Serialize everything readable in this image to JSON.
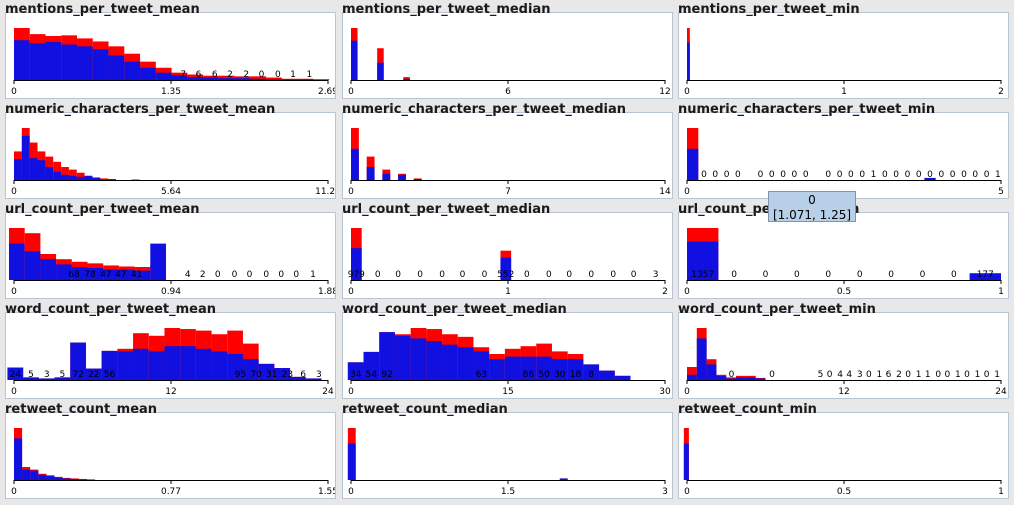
{
  "chart_data": [
    {
      "type": "bar",
      "title": "mentions_per_tweet_mean",
      "ticks": [
        "0",
        "1.35",
        "2.69"
      ],
      "xlim": [
        0,
        2.69
      ],
      "x_start": 0,
      "bin_width": 0.135,
      "red": [
        85,
        75,
        72,
        73,
        68,
        63,
        55,
        43,
        30,
        20,
        12,
        9,
        7,
        7,
        6,
        6,
        4,
        2,
        2,
        1
      ],
      "blue": [
        65,
        60,
        62,
        58,
        55,
        50,
        40,
        30,
        20,
        12,
        8,
        5,
        4,
        3,
        3,
        2,
        1,
        1,
        1,
        1
      ],
      "labels": [
        {
          "x": 1.45,
          "text": "7"
        },
        {
          "x": 1.58,
          "text": "6"
        },
        {
          "x": 1.72,
          "text": "6"
        },
        {
          "x": 1.85,
          "text": "2"
        },
        {
          "x": 1.99,
          "text": "2"
        },
        {
          "x": 2.12,
          "text": "0"
        },
        {
          "x": 2.26,
          "text": "0"
        },
        {
          "x": 2.39,
          "text": "1"
        },
        {
          "x": 2.53,
          "text": "1"
        }
      ]
    },
    {
      "type": "bar",
      "title": "mentions_per_tweet_median",
      "ticks": [
        "0",
        "6",
        "12"
      ],
      "xlim": [
        0,
        12
      ],
      "x_start": 0,
      "bin_width": 0.25,
      "red": [
        90,
        0,
        0,
        0,
        55,
        0,
        0,
        0,
        5
      ],
      "blue": [
        68,
        0,
        0,
        0,
        30,
        0,
        0,
        0,
        2
      ],
      "labels": []
    },
    {
      "type": "bar",
      "title": "mentions_per_tweet_min",
      "ticks": [
        "0",
        "1",
        "2"
      ],
      "xlim": [
        0,
        2
      ],
      "x_start": 0,
      "bin_width": 0.018,
      "red": [
        90
      ],
      "blue": [
        65
      ],
      "labels": []
    },
    {
      "type": "bar",
      "title": "numeric_characters_per_tweet_mean",
      "ticks": [
        "0",
        "5.64",
        "11.29"
      ],
      "xlim": [
        0,
        11.29
      ],
      "x_start": 0,
      "bin_width": 0.282,
      "red": [
        55,
        100,
        72,
        55,
        45,
        35,
        25,
        20,
        14,
        8,
        5,
        3,
        2,
        0,
        0,
        1
      ],
      "blue": [
        40,
        85,
        42,
        38,
        25,
        16,
        10,
        8,
        6,
        8,
        4,
        1,
        1,
        0,
        0,
        0
      ],
      "labels": []
    },
    {
      "type": "bar",
      "title": "numeric_characters_per_tweet_median",
      "ticks": [
        "0",
        "7",
        "14"
      ],
      "xlim": [
        0,
        14
      ],
      "x_start": 0,
      "bin_width": 0.35,
      "red": [
        100,
        0,
        45,
        0,
        20,
        0,
        12,
        0,
        3
      ],
      "blue": [
        60,
        0,
        25,
        0,
        12,
        0,
        10,
        0,
        2
      ],
      "labels": []
    },
    {
      "type": "bar",
      "title": "numeric_characters_per_tweet_min",
      "ticks": [
        "0",
        "5"
      ],
      "xlim": [
        0,
        5
      ],
      "x_start": 0,
      "bin_width": 0.18,
      "red": [
        100,
        0,
        0,
        0,
        0,
        0,
        0,
        0,
        0,
        0,
        0,
        0,
        0,
        0,
        0,
        0,
        0,
        0,
        0,
        0,
        0,
        0,
        0,
        0,
        0,
        0,
        0,
        0
      ],
      "blue": [
        60,
        0,
        0,
        0,
        0,
        0,
        0,
        0,
        0,
        0,
        0,
        0,
        0,
        0,
        0,
        0,
        0,
        0,
        0,
        0,
        0,
        4,
        0,
        0,
        0,
        0,
        0,
        0
      ],
      "labels": [
        {
          "x": 0.27,
          "text": "0"
        },
        {
          "x": 0.45,
          "text": "0"
        },
        {
          "x": 0.63,
          "text": "0"
        },
        {
          "x": 0.81,
          "text": "0"
        },
        {
          "x": 1.17,
          "text": "0"
        },
        {
          "x": 1.35,
          "text": "0"
        },
        {
          "x": 1.53,
          "text": "0"
        },
        {
          "x": 1.71,
          "text": "0"
        },
        {
          "x": 1.89,
          "text": "0"
        },
        {
          "x": 2.25,
          "text": "0"
        },
        {
          "x": 2.43,
          "text": "0"
        },
        {
          "x": 2.61,
          "text": "0"
        },
        {
          "x": 2.79,
          "text": "0"
        },
        {
          "x": 2.97,
          "text": "1"
        },
        {
          "x": 3.15,
          "text": "0"
        },
        {
          "x": 3.33,
          "text": "0"
        },
        {
          "x": 3.51,
          "text": "0"
        },
        {
          "x": 3.69,
          "text": "0"
        },
        {
          "x": 3.87,
          "text": "0"
        },
        {
          "x": 4.05,
          "text": "0"
        },
        {
          "x": 4.23,
          "text": "0"
        },
        {
          "x": 4.41,
          "text": "0"
        },
        {
          "x": 4.59,
          "text": "0"
        },
        {
          "x": 4.77,
          "text": "0"
        },
        {
          "x": 4.95,
          "text": "1"
        }
      ]
    },
    {
      "type": "bar",
      "title": "url_count_per_tweet_mean",
      "ticks": [
        "0",
        "0.94",
        "1.88"
      ],
      "xlim": [
        0,
        1.88
      ],
      "x_start": -0.03,
      "bin_width": 0.094,
      "red": [
        100,
        90,
        50,
        40,
        35,
        32,
        28,
        26,
        25,
        28
      ],
      "blue": [
        70,
        55,
        40,
        30,
        25,
        23,
        20,
        20,
        18,
        70
      ],
      "labels": [
        {
          "x": 0.36,
          "text": "68"
        },
        {
          "x": 0.455,
          "text": "78"
        },
        {
          "x": 0.55,
          "text": "47"
        },
        {
          "x": 0.64,
          "text": "47"
        },
        {
          "x": 0.735,
          "text": "41"
        },
        {
          "x": 1.04,
          "text": "4"
        },
        {
          "x": 1.13,
          "text": "2"
        },
        {
          "x": 1.22,
          "text": "0"
        },
        {
          "x": 1.32,
          "text": "0"
        },
        {
          "x": 1.41,
          "text": "0"
        },
        {
          "x": 1.51,
          "text": "0"
        },
        {
          "x": 1.6,
          "text": "0"
        },
        {
          "x": 1.69,
          "text": "0"
        },
        {
          "x": 1.79,
          "text": "1"
        }
      ]
    },
    {
      "type": "bar",
      "title": "url_count_per_tweet_median",
      "ticks": [
        "0",
        "1",
        "2"
      ],
      "xlim": [
        0,
        2
      ],
      "x_start": 0,
      "bin_width": 0.068,
      "red": [
        979,
        0,
        0,
        0,
        0,
        0,
        0,
        0,
        0,
        0,
        0,
        0,
        0,
        0,
        552
      ],
      "blue": [
        600,
        0,
        0,
        0,
        0,
        0,
        0,
        0,
        0,
        0,
        0,
        0,
        0,
        0,
        420
      ],
      "labels": [
        {
          "x": 0.034,
          "text": "979"
        },
        {
          "x": 0.17,
          "text": "0"
        },
        {
          "x": 0.3,
          "text": "0"
        },
        {
          "x": 0.44,
          "text": "0"
        },
        {
          "x": 0.58,
          "text": "0"
        },
        {
          "x": 0.71,
          "text": "0"
        },
        {
          "x": 0.85,
          "text": "0"
        },
        {
          "x": 0.986,
          "text": "552"
        },
        {
          "x": 1.12,
          "text": "0"
        },
        {
          "x": 1.26,
          "text": "0"
        },
        {
          "x": 1.39,
          "text": "0"
        },
        {
          "x": 1.53,
          "text": "0"
        },
        {
          "x": 1.67,
          "text": "0"
        },
        {
          "x": 1.8,
          "text": "0"
        },
        {
          "x": 1.94,
          "text": "3"
        }
      ]
    },
    {
      "type": "bar",
      "title": "url_count_per_tweet_min",
      "ticks": [
        "0",
        "0.5",
        "1"
      ],
      "xlim": [
        0,
        1
      ],
      "x_start": 0,
      "bin_width": 0.1,
      "red": [
        1357,
        0,
        0,
        0,
        0,
        0,
        0,
        0,
        0,
        0
      ],
      "blue": [
        1000,
        0,
        0,
        0,
        0,
        0,
        0,
        0,
        0,
        177
      ],
      "labels": [
        {
          "x": 0.05,
          "text": "1357"
        },
        {
          "x": 0.15,
          "text": "0"
        },
        {
          "x": 0.25,
          "text": "0"
        },
        {
          "x": 0.35,
          "text": "0"
        },
        {
          "x": 0.45,
          "text": "0"
        },
        {
          "x": 0.55,
          "text": "0"
        },
        {
          "x": 0.65,
          "text": "0"
        },
        {
          "x": 0.75,
          "text": "0"
        },
        {
          "x": 0.85,
          "text": "0"
        },
        {
          "x": 0.95,
          "text": "177"
        }
      ]
    },
    {
      "type": "bar",
      "title": "word_count_per_tweet_mean",
      "ticks": [
        "0",
        "12",
        "24"
      ],
      "xlim": [
        0,
        24
      ],
      "x_start": -0.5,
      "bin_width": 1.2,
      "red": [
        24,
        5,
        3,
        5,
        72,
        22,
        56,
        60,
        90,
        85,
        100,
        98,
        95,
        88,
        95,
        70,
        31,
        23,
        6,
        3
      ],
      "blue": [
        24,
        5,
        3,
        5,
        72,
        22,
        56,
        55,
        60,
        55,
        65,
        65,
        60,
        55,
        50,
        40,
        31,
        23,
        6,
        3
      ],
      "labels": [
        {
          "x": 0.1,
          "text": "24"
        },
        {
          "x": 1.3,
          "text": "5"
        },
        {
          "x": 2.5,
          "text": "3"
        },
        {
          "x": 3.7,
          "text": "5"
        },
        {
          "x": 4.9,
          "text": "72"
        },
        {
          "x": 6.1,
          "text": "22"
        },
        {
          "x": 7.3,
          "text": "56"
        },
        {
          "x": 17.3,
          "text": "95"
        },
        {
          "x": 18.5,
          "text": "70"
        },
        {
          "x": 19.7,
          "text": "31"
        },
        {
          "x": 20.9,
          "text": "23"
        },
        {
          "x": 22.1,
          "text": "6"
        },
        {
          "x": 23.3,
          "text": "3"
        }
      ]
    },
    {
      "type": "bar",
      "title": "word_count_per_tweet_median",
      "ticks": [
        "0",
        "15",
        "30"
      ],
      "xlim": [
        0,
        30
      ],
      "x_start": -0.3,
      "bin_width": 1.5,
      "red": [
        34,
        54,
        92,
        88,
        100,
        98,
        88,
        83,
        63,
        50,
        60,
        65,
        70,
        55,
        50,
        30,
        18,
        8
      ],
      "blue": [
        34,
        54,
        92,
        85,
        80,
        75,
        68,
        63,
        55,
        40,
        45,
        45,
        45,
        40,
        40,
        30,
        18,
        8
      ],
      "labels": [
        {
          "x": 0.45,
          "text": "34"
        },
        {
          "x": 1.95,
          "text": "54"
        },
        {
          "x": 3.45,
          "text": "92"
        },
        {
          "x": 12.45,
          "text": "63"
        },
        {
          "x": 16.95,
          "text": "86"
        },
        {
          "x": 18.45,
          "text": "50"
        },
        {
          "x": 19.95,
          "text": "30"
        },
        {
          "x": 21.45,
          "text": "18"
        },
        {
          "x": 22.95,
          "text": "8"
        }
      ]
    },
    {
      "type": "bar",
      "title": "word_count_per_tweet_min",
      "ticks": [
        "0",
        "12",
        "24"
      ],
      "xlim": [
        0,
        24
      ],
      "x_start": 0,
      "bin_width": 0.75,
      "red": [
        25,
        100,
        40,
        10,
        5,
        8,
        8,
        4,
        0,
        0,
        0,
        0,
        0,
        0,
        0,
        0,
        0,
        0,
        0,
        0,
        0,
        0,
        0,
        0,
        0,
        0,
        0,
        0,
        0,
        0,
        0,
        0
      ],
      "blue": [
        10,
        80,
        30,
        8,
        3,
        5,
        5,
        3,
        0,
        0,
        0,
        0,
        0,
        0,
        0,
        0,
        0,
        0,
        0,
        0,
        0,
        0,
        0,
        0,
        0,
        0,
        0,
        0,
        0,
        0,
        0,
        0
      ],
      "labels": [
        {
          "x": 3.4,
          "text": "0"
        },
        {
          "x": 6.5,
          "text": "0"
        },
        {
          "x": 10.2,
          "text": "5"
        },
        {
          "x": 10.9,
          "text": "0"
        },
        {
          "x": 11.7,
          "text": "4"
        },
        {
          "x": 12.4,
          "text": "4"
        },
        {
          "x": 13.2,
          "text": "3"
        },
        {
          "x": 13.9,
          "text": "0"
        },
        {
          "x": 14.7,
          "text": "1"
        },
        {
          "x": 15.4,
          "text": "6"
        },
        {
          "x": 16.2,
          "text": "2"
        },
        {
          "x": 16.9,
          "text": "0"
        },
        {
          "x": 17.7,
          "text": "1"
        },
        {
          "x": 18.4,
          "text": "1"
        },
        {
          "x": 19.2,
          "text": "0"
        },
        {
          "x": 19.9,
          "text": "0"
        },
        {
          "x": 20.7,
          "text": "1"
        },
        {
          "x": 21.4,
          "text": "0"
        },
        {
          "x": 22.2,
          "text": "1"
        },
        {
          "x": 22.9,
          "text": "0"
        },
        {
          "x": 23.7,
          "text": "1"
        }
      ]
    },
    {
      "type": "bar",
      "title": "retweet_count_mean",
      "ticks": [
        "0",
        "0.77",
        "1.55"
      ],
      "xlim": [
        0,
        1.55
      ],
      "x_start": 0,
      "bin_width": 0.04,
      "red": [
        100,
        25,
        20,
        12,
        9,
        6,
        4,
        3,
        2,
        1
      ],
      "blue": [
        80,
        20,
        18,
        10,
        8,
        5,
        3,
        2,
        1,
        1
      ],
      "labels": []
    },
    {
      "type": "bar",
      "title": "retweet_count_median",
      "ticks": [
        "0",
        "1.5",
        "3"
      ],
      "xlim": [
        0,
        3
      ],
      "x_start": -0.03,
      "bin_width": 0.075,
      "red": [
        100,
        0,
        0,
        0,
        0,
        0,
        0,
        0,
        0,
        0,
        0,
        0,
        0,
        0,
        0,
        0,
        0,
        0,
        0,
        0,
        0,
        0,
        0,
        0,
        0,
        0,
        0,
        3
      ],
      "blue": [
        70,
        0,
        0,
        0,
        0,
        0,
        0,
        0,
        0,
        0,
        0,
        0,
        0,
        0,
        0,
        0,
        0,
        0,
        0,
        0,
        0,
        0,
        0,
        0,
        0,
        0,
        0,
        3
      ],
      "labels": []
    },
    {
      "type": "bar",
      "title": "retweet_count_min",
      "ticks": [
        "0",
        "0.5",
        "1"
      ],
      "xlim": [
        0,
        1
      ],
      "x_start": -0.01,
      "bin_width": 0.016,
      "red": [
        100
      ],
      "blue": [
        70
      ],
      "labels": []
    }
  ],
  "colors": {
    "red": "#ff0000",
    "blue": "#1010e0",
    "axis": "#000000"
  },
  "tooltip": {
    "count": "0",
    "range": "[1.071, 1.25]"
  }
}
